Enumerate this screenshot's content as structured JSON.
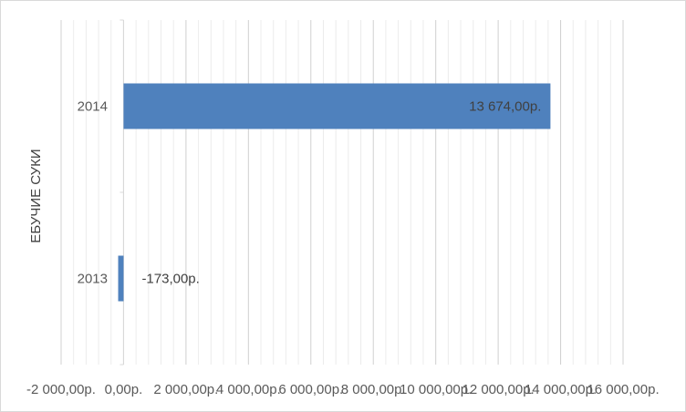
{
  "chart_data": {
    "type": "bar",
    "orientation": "horizontal",
    "categories": [
      "2014",
      "2013"
    ],
    "series": [
      {
        "values": [
          13674,
          -173
        ],
        "data_labels": [
          "13 674,00р.",
          "-173,00р."
        ],
        "color": "#4f81bd"
      }
    ],
    "ylabel": "ЕБУЧИЕ СУКИ",
    "xlim": [
      -2000,
      16000
    ],
    "x_ticks": [
      -2000,
      0,
      2000,
      4000,
      6000,
      8000,
      10000,
      12000,
      14000,
      16000
    ],
    "x_tick_labels": [
      "-2 000,00р.",
      "0,00р.",
      "2 000,00р.",
      "4 000,00р.",
      "6 000,00р.",
      "8 000,00р.",
      "10 000,00р.",
      "12 000,00р.",
      "14 000,00р.",
      "16 000,00р."
    ],
    "grid": true,
    "legend": "none"
  },
  "colors": {
    "bar": "#4f81bd",
    "gridline": "#d9d9d9",
    "text": "#595959"
  }
}
